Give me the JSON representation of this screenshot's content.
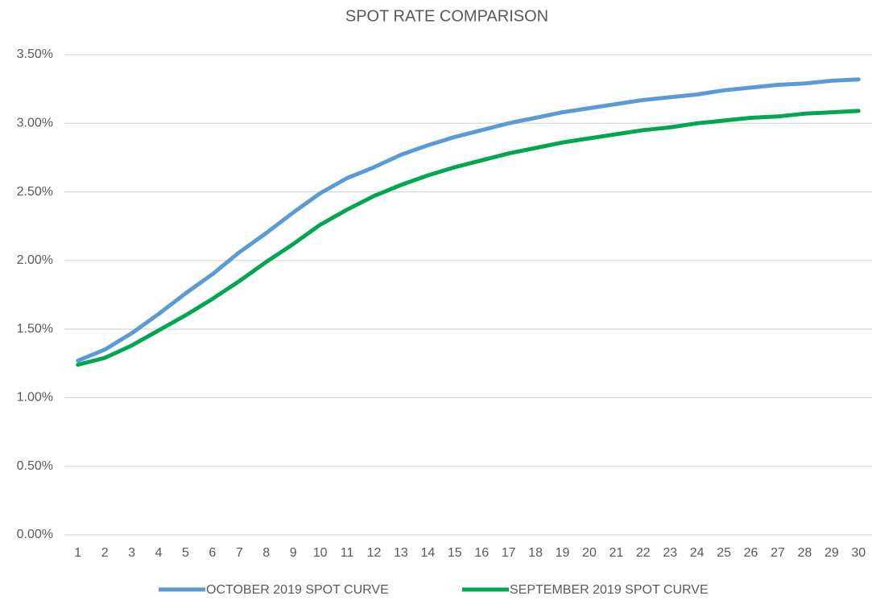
{
  "chart_data": {
    "type": "line",
    "title": "SPOT RATE COMPARISON",
    "categories": [
      "1",
      "2",
      "3",
      "4",
      "5",
      "6",
      "7",
      "8",
      "9",
      "10",
      "11",
      "12",
      "13",
      "14",
      "15",
      "16",
      "17",
      "18",
      "19",
      "20",
      "21",
      "22",
      "23",
      "24",
      "25",
      "26",
      "27",
      "28",
      "29",
      "30"
    ],
    "series": [
      {
        "name": "OCTOBER 2019 SPOT CURVE",
        "color": "#5b9bd5",
        "values": [
          1.27,
          1.35,
          1.47,
          1.61,
          1.76,
          1.9,
          2.06,
          2.2,
          2.35,
          2.49,
          2.6,
          2.68,
          2.77,
          2.84,
          2.9,
          2.95,
          3.0,
          3.04,
          3.08,
          3.11,
          3.14,
          3.17,
          3.19,
          3.21,
          3.24,
          3.26,
          3.28,
          3.29,
          3.31,
          3.32
        ]
      },
      {
        "name": "SEPTEMBER 2019 SPOT CURVE",
        "color": "#00a650",
        "values": [
          1.24,
          1.29,
          1.38,
          1.49,
          1.6,
          1.72,
          1.85,
          1.99,
          2.12,
          2.26,
          2.37,
          2.47,
          2.55,
          2.62,
          2.68,
          2.73,
          2.78,
          2.82,
          2.86,
          2.89,
          2.92,
          2.95,
          2.97,
          3.0,
          3.02,
          3.04,
          3.05,
          3.07,
          3.08,
          3.09
        ]
      }
    ],
    "ylim": [
      0,
      3.5
    ],
    "yticks": [
      {
        "value": 0,
        "label": "0.00%"
      },
      {
        "value": 0.5,
        "label": "0.50%"
      },
      {
        "value": 1,
        "label": "1.00%"
      },
      {
        "value": 1.5,
        "label": "1.50%"
      },
      {
        "value": 2,
        "label": "2.00%"
      },
      {
        "value": 2.5,
        "label": "2.50%"
      },
      {
        "value": 3,
        "label": "3.00%"
      },
      {
        "value": 3.5,
        "label": "3.50%"
      }
    ],
    "grid": true,
    "legend": "bottom"
  }
}
